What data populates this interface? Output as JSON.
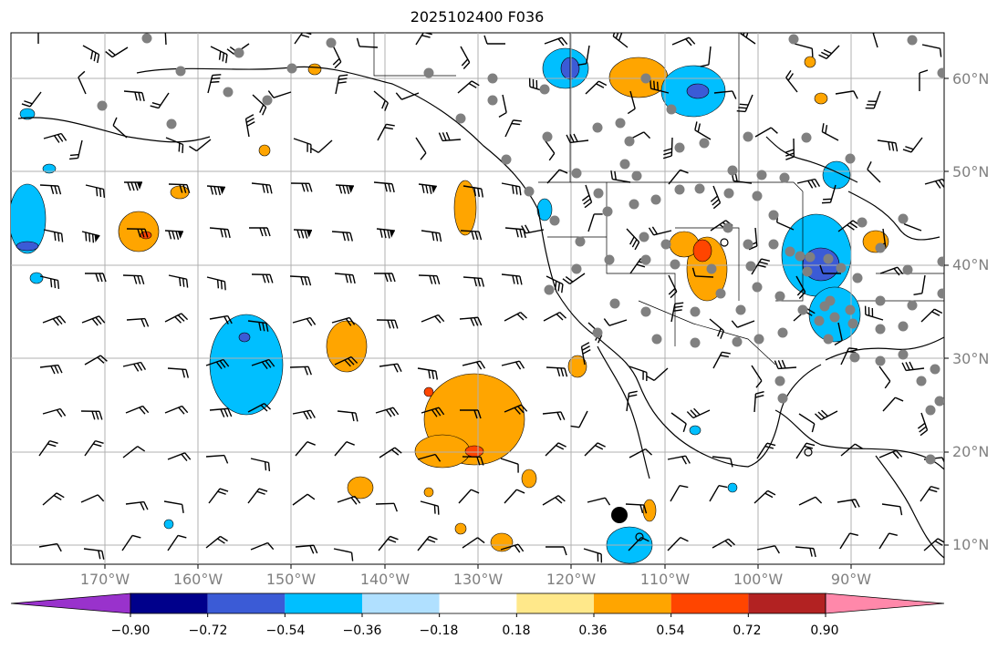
{
  "title": "2025102400 F036",
  "latitude_labels": [
    "60°N",
    "50°N",
    "40°N",
    "30°N",
    "20°N",
    "10°N"
  ],
  "longitude_labels": [
    "170°W",
    "160°W",
    "150°W",
    "140°W",
    "130°W",
    "120°W",
    "110°W",
    "100°W",
    "90°W"
  ],
  "colorbar": {
    "tick_labels": [
      "−0.90",
      "−0.72",
      "−0.54",
      "−0.36",
      "−0.18",
      "0.18",
      "0.36",
      "0.54",
      "0.72",
      "0.90"
    ],
    "colors": [
      "#9932cc",
      "#00008b",
      "#3b5bd6",
      "#00bfff",
      "#b0e0ff",
      "#ffffff",
      "#ffe88a",
      "#ffa500",
      "#ff4500",
      "#b22222",
      "#ff88aa"
    ]
  },
  "map_colors": {
    "negative_light": "#00bfff",
    "negative_medium": "#3b5bd6",
    "positive_light": "#ffa500",
    "positive_strong": "#ff4500",
    "station": "#808080",
    "grid": "#b0b0b0"
  }
}
